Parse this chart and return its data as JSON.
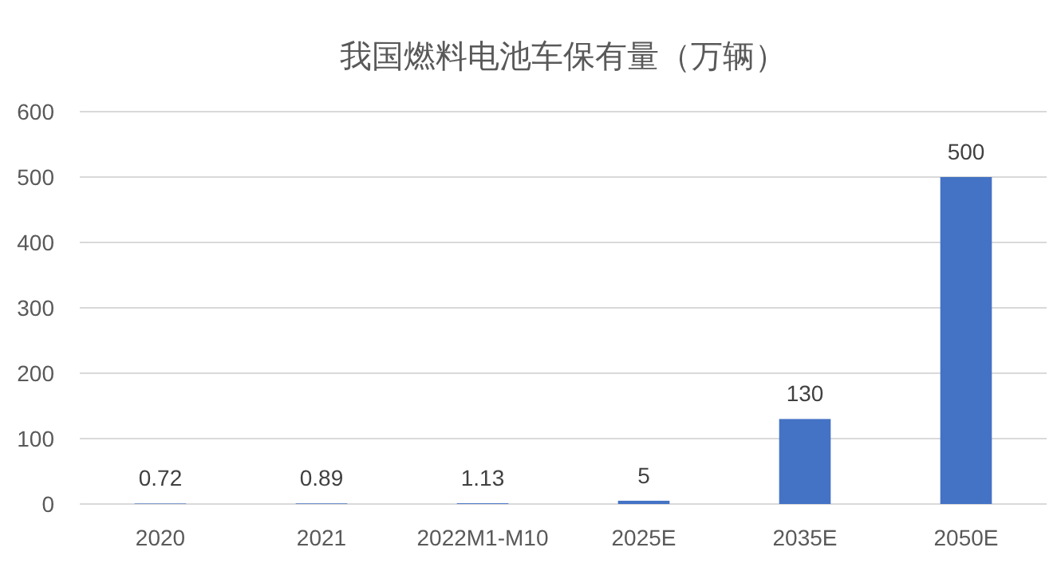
{
  "chart_data": {
    "type": "bar",
    "title": "我国燃料电池车保有量（万辆）",
    "categories": [
      "2020",
      "2021",
      "2022M1-M10",
      "2025E",
      "2035E",
      "2050E"
    ],
    "values": [
      0.72,
      0.89,
      1.13,
      5,
      130,
      500
    ],
    "color": "#4472c4",
    "ylim": [
      0,
      600
    ],
    "yticks": [
      0,
      100,
      200,
      300,
      400,
      500,
      600
    ],
    "grid": "y",
    "data_labels": true
  }
}
